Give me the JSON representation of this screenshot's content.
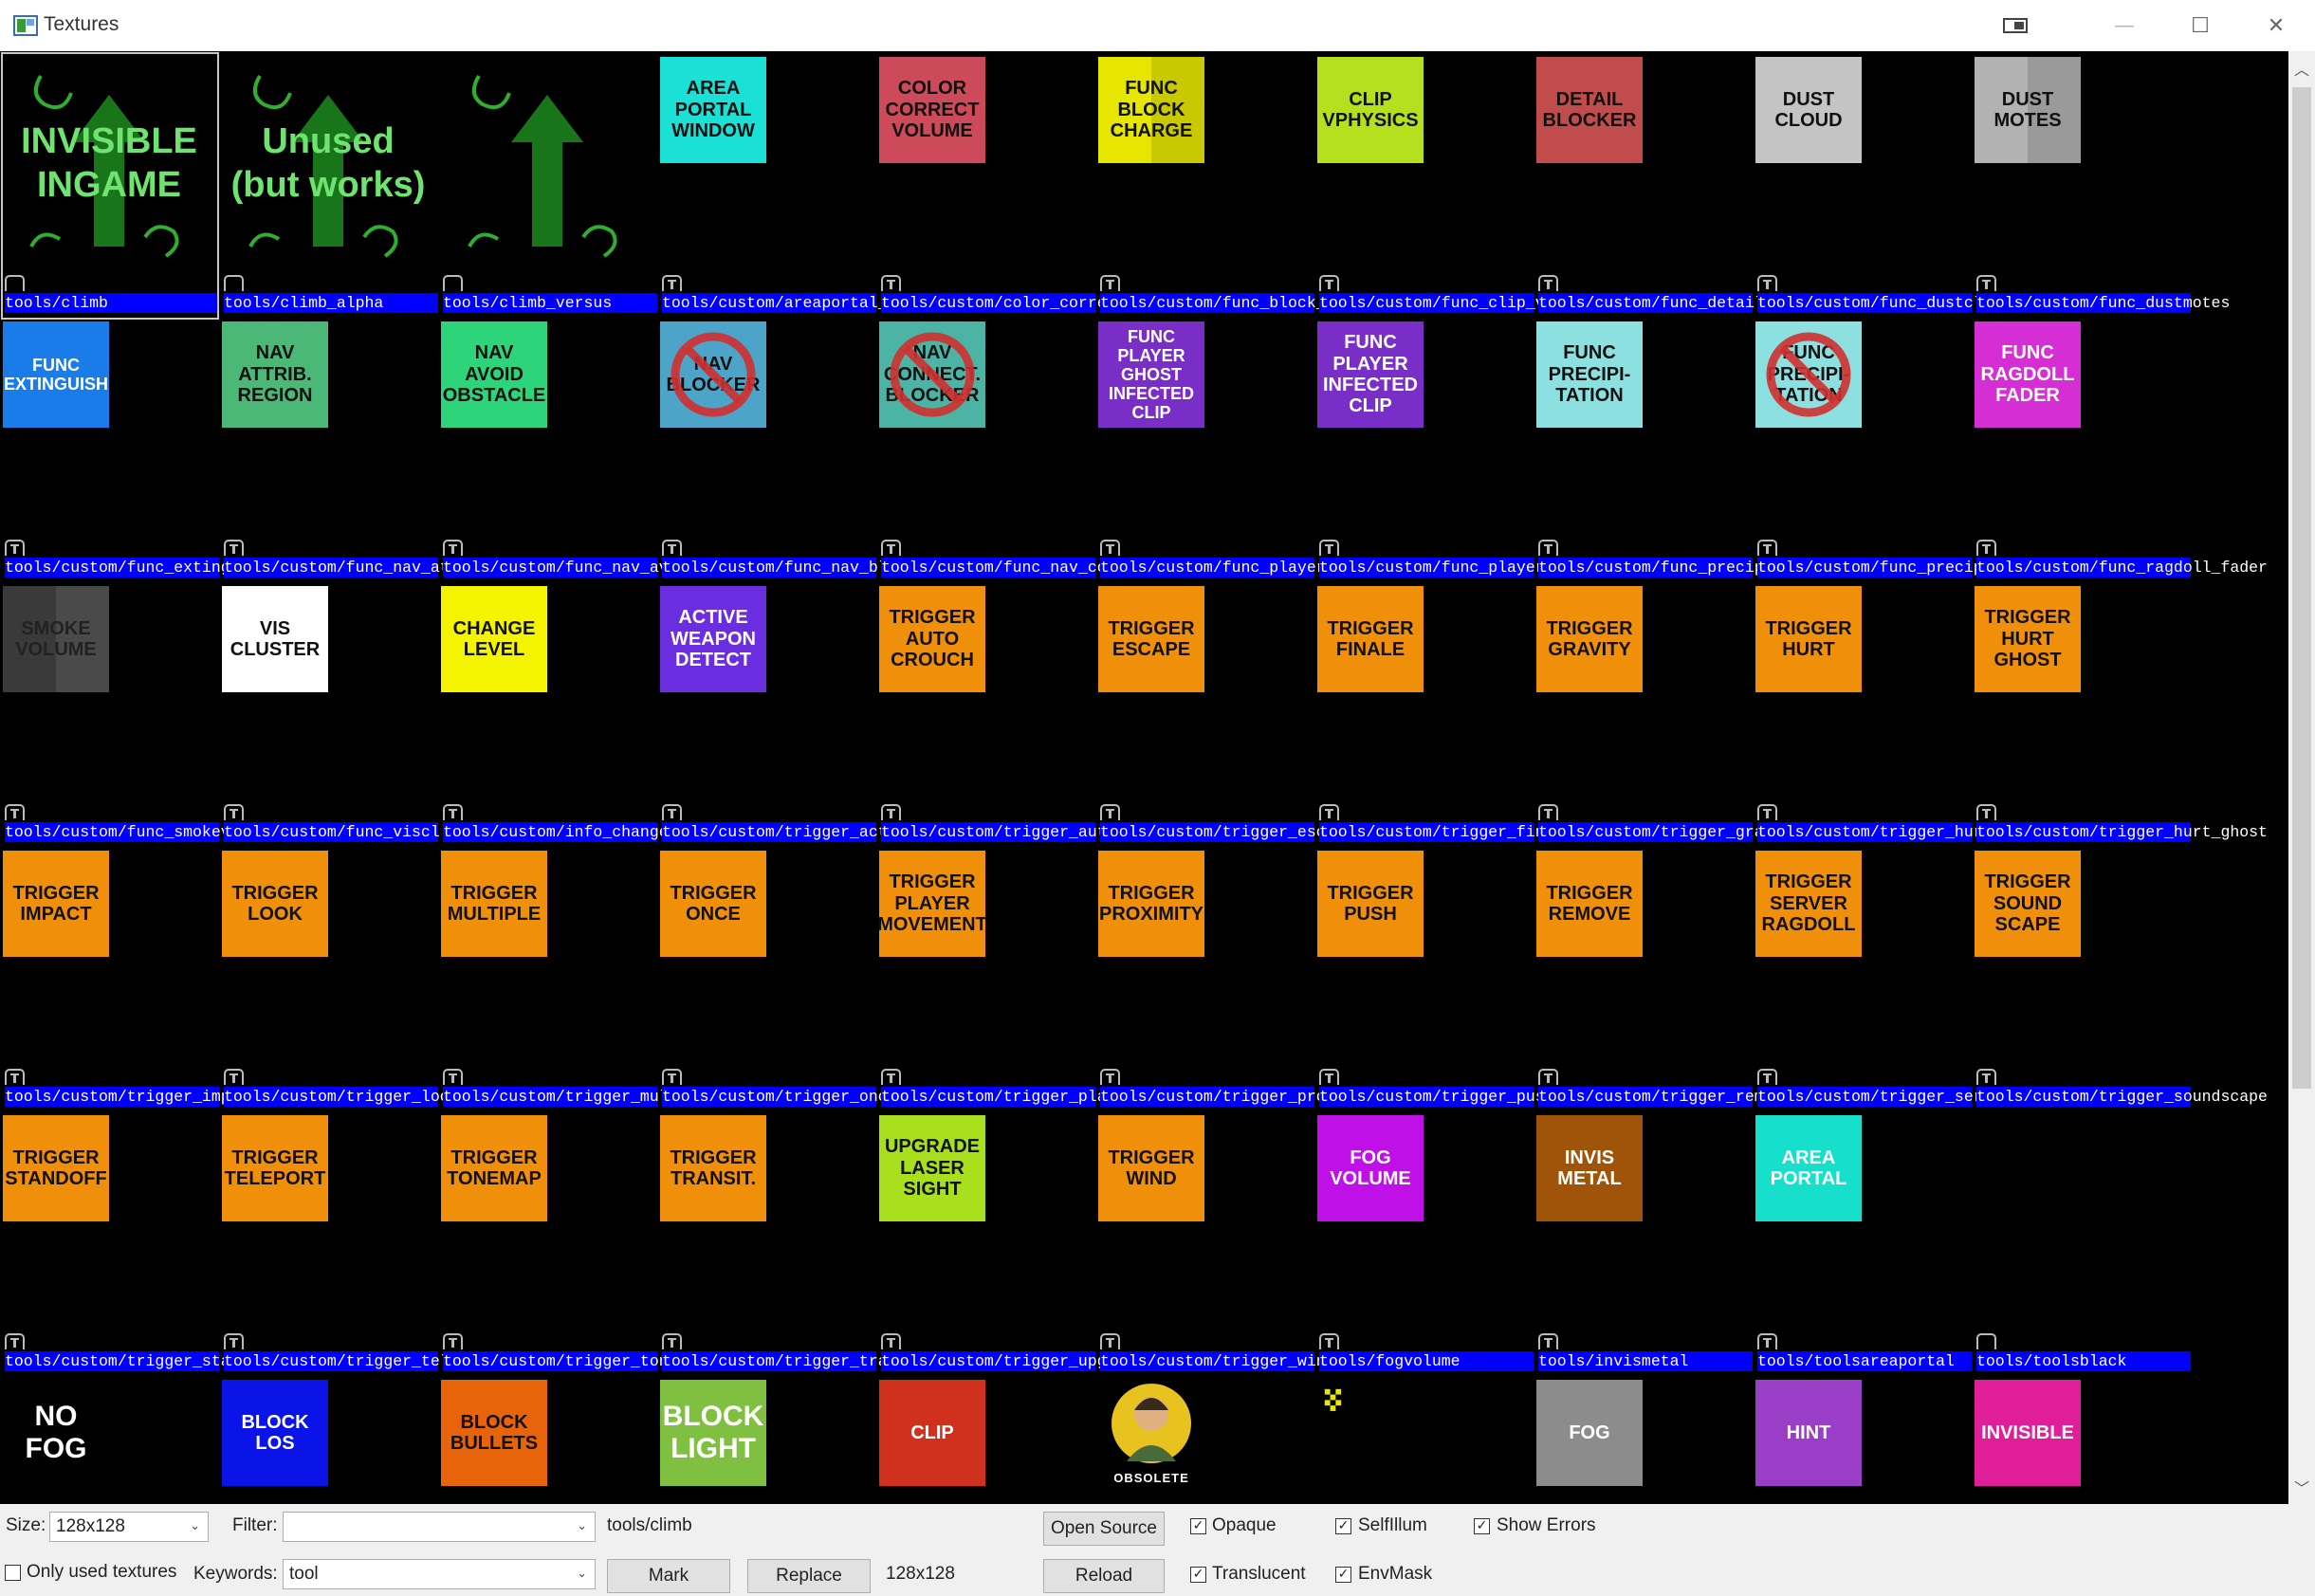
{
  "window": {
    "title": "Textures"
  },
  "colors": {
    "label_bg": "#0000ff",
    "selection": "#c8c8c8"
  },
  "rows": [
    [
      {
        "path": "tools/climb",
        "big": true,
        "text": "INVISIBLE\nINGAME",
        "selected": true,
        "icon": "blank"
      },
      {
        "path": "tools/climb_alpha",
        "big": true,
        "text": "Unused\n(but works)",
        "icon": "blank"
      },
      {
        "path": "tools/climb_versus",
        "big": true,
        "text": "",
        "icon": "blank"
      },
      {
        "path": "tools/custom/areaportal_",
        "text": "AREA\nPORTAL\nWINDOW",
        "bg": "#1ae0d6",
        "icon": "t"
      },
      {
        "path": "tools/custom/color_corre",
        "text": "COLOR\nCORRECT\nVOLUME",
        "bg": "#cc4a5a",
        "icon": "t"
      },
      {
        "path": "tools/custom/func_block_",
        "text": "FUNC\nBLOCK\nCHARGE",
        "bg": "#e6e600",
        "icon": "t",
        "split": "#c9c900"
      },
      {
        "path": "tools/custom/func_clip_v",
        "text": "CLIP\nVPHYSICS",
        "bg": "#b4e01e",
        "icon": "t"
      },
      {
        "path": "tools/custom/func_detail",
        "text": "DETAIL\nBLOCKER",
        "bg": "#c04c4c",
        "icon": "t"
      },
      {
        "path": "tools/custom/func_dustcl",
        "text": "DUST\nCLOUD",
        "bg": "#c4c4c4",
        "icon": "t"
      },
      {
        "path": "tools/custom/func_dustmotes",
        "text": "DUST\nMOTES",
        "bg": "#b2b2b2",
        "icon": "t",
        "split": "#9a9a9a",
        "overflow": "otes"
      }
    ],
    [
      {
        "path": "tools/custom/func_exting",
        "text": "FUNC\nEXTINGUISH",
        "bg": "#1a7ce8",
        "fg": "#ffffff",
        "small": true,
        "icon": "t"
      },
      {
        "path": "tools/custom/func_nav_at",
        "text": "NAV\nATTRIB.\nREGION",
        "bg": "#4cb878",
        "icon": "t"
      },
      {
        "path": "tools/custom/func_nav_av",
        "text": "NAV\nAVOID\nOBSTACLE",
        "bg": "#2ed47a",
        "icon": "t"
      },
      {
        "path": "tools/custom/func_nav_bl",
        "text": "NAV\nBLOCKER",
        "bg": "#4ca4c8",
        "icon": "t",
        "nosign": true
      },
      {
        "path": "tools/custom/func_nav_co",
        "text": "NAV\nCONNECT.\nBLOCKER",
        "bg": "#4cb4a4",
        "icon": "t",
        "nosign": true
      },
      {
        "path": "tools/custom/func_player",
        "text": "FUNC\nPLAYER\nGHOST\nINFECTED\nCLIP",
        "bg": "#7a2ec8",
        "fg": "#ffffff",
        "small": true,
        "icon": "t"
      },
      {
        "path": "tools/custom/func_player",
        "text": "FUNC\nPLAYER\nINFECTED\nCLIP",
        "bg": "#7a2ec8",
        "fg": "#ffffff",
        "icon": "t"
      },
      {
        "path": "tools/custom/func_precip",
        "text": "FUNC\nPRECIPI-\nTATION",
        "bg": "#8ce0e0",
        "icon": "t"
      },
      {
        "path": "tools/custom/func_precip",
        "text": "FUNC\nPRECIPI-\nTATION",
        "bg": "#8ce0e0",
        "icon": "t",
        "nosign": true
      },
      {
        "path": "tools/custom/func_ragdoll_fader",
        "text": "FUNC\nRAGDOLL\nFADER",
        "bg": "#d42ed4",
        "fg": "#ffffff",
        "icon": "t",
        "overflow": "ll_fader"
      }
    ],
    [
      {
        "path": "tools/custom/func_smokev",
        "text": "SMOKE\nVOLUME",
        "bg": "#3a3a3a",
        "fg": "#222",
        "icon": "t",
        "split": "#4a4a4a"
      },
      {
        "path": "tools/custom/func_viscl",
        "text": "VIS\nCLUSTER",
        "bg": "#ffffff",
        "icon": "t"
      },
      {
        "path": "tools/custom/info_change",
        "text": "CHANGE\nLEVEL",
        "bg": "#f4f400",
        "icon": "t"
      },
      {
        "path": "tools/custom/trigger_act",
        "text": "ACTIVE\nWEAPON\nDETECT",
        "bg": "#6a2ee0",
        "fg": "#ffffff",
        "icon": "t"
      },
      {
        "path": "tools/custom/trigger_aut",
        "text": "TRIGGER\nAUTO\nCROUCH",
        "bg": "#f0900a",
        "icon": "t"
      },
      {
        "path": "tools/custom/trigger_esc",
        "text": "TRIGGER\nESCAPE",
        "bg": "#f0900a",
        "icon": "t"
      },
      {
        "path": "tools/custom/trigger_fin",
        "text": "TRIGGER\nFINALE",
        "bg": "#f0900a",
        "icon": "t"
      },
      {
        "path": "tools/custom/trigger_gra",
        "text": "TRIGGER\nGRAVITY",
        "bg": "#f0900a",
        "icon": "t"
      },
      {
        "path": "tools/custom/trigger_hur",
        "text": "TRIGGER\nHURT",
        "bg": "#f0900a",
        "icon": "t"
      },
      {
        "path": "tools/custom/trigger_hurt_ghost",
        "text": "TRIGGER\nHURT\nGHOST",
        "bg": "#f0900a",
        "icon": "t",
        "overflow": "_ghost"
      }
    ],
    [
      {
        "path": "tools/custom/trigger_imp",
        "text": "TRIGGER\nIMPACT",
        "bg": "#f0900a",
        "icon": "t"
      },
      {
        "path": "tools/custom/trigger_loo",
        "text": "TRIGGER\nLOOK",
        "bg": "#f0900a",
        "icon": "t"
      },
      {
        "path": "tools/custom/trigger_mul",
        "text": "TRIGGER\nMULTIPLE",
        "bg": "#f0900a",
        "icon": "t"
      },
      {
        "path": "tools/custom/trigger_onc",
        "text": "TRIGGER\nONCE",
        "bg": "#f0900a",
        "icon": "t"
      },
      {
        "path": "tools/custom/trigger_pla",
        "text": "TRIGGER\nPLAYER\nMOVEMENT",
        "bg": "#f0900a",
        "icon": "t"
      },
      {
        "path": "tools/custom/trigger_pro",
        "text": "TRIGGER\nPROXIMITY",
        "bg": "#f0900a",
        "icon": "t"
      },
      {
        "path": "tools/custom/trigger_pus",
        "text": "TRIGGER\nPUSH",
        "bg": "#f0900a",
        "icon": "t"
      },
      {
        "path": "tools/custom/trigger_rem",
        "text": "TRIGGER\nREMOVE",
        "bg": "#f0900a",
        "icon": "t"
      },
      {
        "path": "tools/custom/trigger_ser",
        "text": "TRIGGER\nSERVER\nRAGDOLL",
        "bg": "#f0900a",
        "icon": "t"
      },
      {
        "path": "tools/custom/trigger_soundscape",
        "text": "TRIGGER\nSOUND\nSCAPE",
        "bg": "#f0900a",
        "icon": "t",
        "overflow": "undscape"
      }
    ],
    [
      {
        "path": "tools/custom/trigger_sta",
        "text": "TRIGGER\nSTANDOFF",
        "bg": "#f0900a",
        "icon": "t"
      },
      {
        "path": "tools/custom/trigger_tel",
        "text": "TRIGGER\nTELEPORT",
        "bg": "#f0900a",
        "icon": "t"
      },
      {
        "path": "tools/custom/trigger_ton",
        "text": "TRIGGER\nTONEMAP",
        "bg": "#f0900a",
        "icon": "t"
      },
      {
        "path": "tools/custom/trigger_tra",
        "text": "TRIGGER\nTRANSIT.",
        "bg": "#f0900a",
        "icon": "t"
      },
      {
        "path": "tools/custom/trigger_upg",
        "text": "UPGRADE\nLASER\nSIGHT",
        "bg": "#a8e01e",
        "icon": "t"
      },
      {
        "path": "tools/custom/trigger_win",
        "text": "TRIGGER\nWIND",
        "bg": "#f0900a",
        "icon": "t"
      },
      {
        "path": "tools/fogvolume",
        "text": "FOG\nVOLUME",
        "bg": "#c010e8",
        "fg": "#ffffff",
        "icon": "t",
        "wide": true
      },
      {
        "path": "tools/invismetal",
        "text": "INVIS\nMETAL",
        "bg": "#a0540a",
        "fg": "#ffffff",
        "icon": "t"
      },
      {
        "path": "tools/toolsareaportal",
        "text": "AREA\nPORTAL",
        "bg": "#16e0cc",
        "fg": "#ffffff",
        "icon": "t"
      },
      {
        "path": "tools/toolsblack",
        "text": "",
        "bg": "#000000",
        "icon": "blank"
      }
    ],
    [
      {
        "path": "",
        "text": "NO\nFOG",
        "bg": "#000000",
        "fg": "#ffffff",
        "large": true,
        "icon": "none"
      },
      {
        "path": "",
        "text": "BLOCK\nLOS",
        "bg": "#0a14e8",
        "fg": "#ffffff",
        "icon": "none"
      },
      {
        "path": "",
        "text": "BLOCK\nBULLETS",
        "bg": "#e8640a",
        "icon": "none"
      },
      {
        "path": "",
        "text": "BLOCK\nLIGHT",
        "bg": "#80c040",
        "fg": "#ffffff",
        "large": true,
        "icon": "none"
      },
      {
        "path": "",
        "text": "CLIP",
        "bg": "#d0301e",
        "fg": "#ffffff",
        "icon": "none"
      },
      {
        "path": "",
        "text": "OBSOLETE",
        "obsolete": true,
        "icon": "none"
      },
      {
        "path": "",
        "text": "",
        "bg": "#000000",
        "icon": "none",
        "dots": true
      },
      {
        "path": "",
        "text": "FOG",
        "bg": "#8c8c8c",
        "fg": "#ffffff",
        "icon": "none"
      },
      {
        "path": "",
        "text": "HINT",
        "bg": "#9a3ec8",
        "fg": "#ffffff",
        "icon": "none"
      },
      {
        "path": "",
        "text": "INVISIBLE",
        "bg": "#e01e9a",
        "fg": "#ffffff",
        "icon": "none"
      }
    ]
  ],
  "bottom": {
    "size_label": "Size:",
    "size_value": "128x128",
    "filter_label": "Filter:",
    "filter_value": "",
    "current_texture": "tools/climb",
    "current_size": "128x128",
    "open_source": "Open Source",
    "reload": "Reload",
    "only_used": "Only used textures",
    "keywords_label": "Keywords:",
    "keywords_value": "tool",
    "mark": "Mark",
    "replace": "Replace",
    "opaque": "Opaque",
    "translucent": "Translucent",
    "selfillum": "SelfIllum",
    "envmask": "EnvMask",
    "show_errors": "Show Errors"
  }
}
